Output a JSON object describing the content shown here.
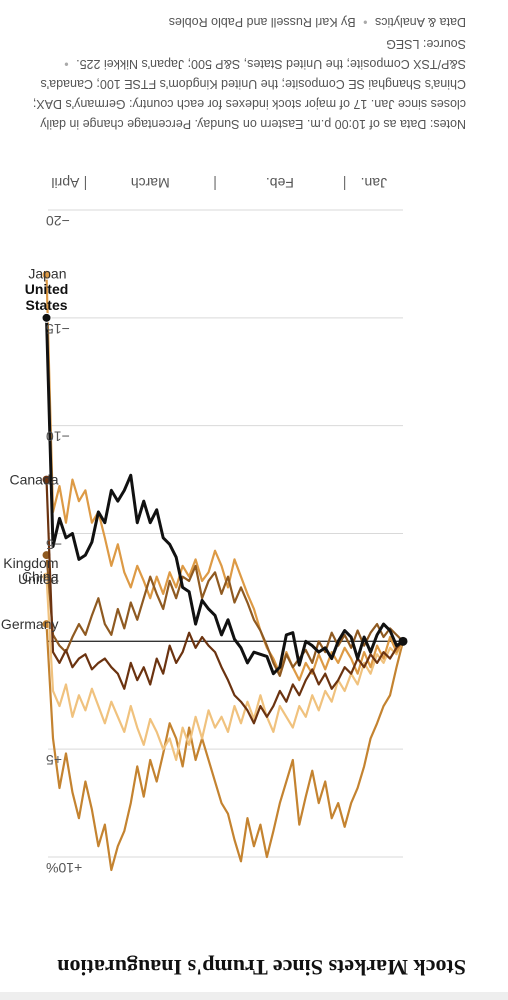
{
  "title": "Stock Markets Since Trump's Inauguration",
  "notes": "Notes: Data as of 10:00 p.m. Eastern on Sunday. Percentage change in daily closes since Jan. 17 of major stock indexes for each country: Germany's DAX; China's Shanghai SE Composite; the United Kingdom's FTSE 100; Canada's S&P/TSX Composite; the United States, S&P 500; Japan's Nikkei 225.",
  "source": "Source: LSEG",
  "credit_org": "Data & Analytics",
  "credit_byline": "By Karl Russell and Pablo Robles",
  "colors": {
    "United States": "#111111",
    "Canada": "#6b3310",
    "United Kingdom": "#8f5a21",
    "Germany": "#c48330",
    "China": "#f0c27e",
    "Japan": "#dd9a45",
    "zero_line": "#333333",
    "grid": "#d9d9d9"
  },
  "chart_data": {
    "type": "line",
    "title": "Stock Markets Since Trump's Inauguration",
    "xlabel": "",
    "ylabel": "",
    "ylim": [
      -20,
      10
    ],
    "y_ticks": [
      10,
      5,
      0,
      -5,
      -10,
      -15,
      -20
    ],
    "y_tick_labels": [
      "+10%",
      "+5",
      "",
      "−5",
      "−10",
      "−15",
      "−20"
    ],
    "x_month_labels": [
      "Jan.",
      "Feb.",
      "March",
      "April"
    ],
    "x_range_trading_days": [
      0,
      54
    ],
    "x_month_boundaries": [
      9,
      29,
      49
    ],
    "grid": true,
    "series": [
      {
        "name": "United States",
        "values": [
          0.0,
          0.2,
          -0.5,
          -0.8,
          -0.3,
          0.5,
          -0.2,
          0.8,
          -0.2,
          -0.5,
          0.0,
          0.8,
          0.3,
          0.5,
          0.2,
          0.0,
          1.1,
          -0.4,
          -0.3,
          1.2,
          1.5,
          0.7,
          0.6,
          0.5,
          1.0,
          0.3,
          -0.1,
          -1.0,
          -0.3,
          -1.2,
          -1.5,
          -1.9,
          -0.8,
          -2.3,
          -2.5,
          -3.9,
          -4.5,
          -4.8,
          -6.1,
          -5.5,
          -6.5,
          -5.5,
          -7.7,
          -7.0,
          -6.5,
          -7.0,
          -5.5,
          -6.0,
          -4.6,
          -4.0,
          -3.8,
          -5.0,
          -4.8,
          -5.7,
          -4.4,
          -15.0
        ],
        "end_label": [
          "United",
          "States"
        ]
      },
      {
        "name": "Canada",
        "values": [
          0.0,
          0.3,
          0.8,
          0.5,
          1.0,
          0.6,
          1.2,
          0.8,
          1.5,
          1.2,
          1.8,
          2.2,
          1.5,
          2.0,
          1.3,
          1.8,
          2.5,
          2.0,
          2.8,
          2.3,
          3.0,
          3.5,
          3.0,
          3.8,
          3.2,
          2.8,
          2.5,
          1.8,
          1.2,
          0.5,
          0.2,
          -0.2,
          0.3,
          -0.4,
          0.5,
          1.0,
          0.2,
          1.5,
          0.8,
          2.0,
          1.2,
          1.8,
          1.0,
          2.2,
          1.5,
          1.2,
          0.8,
          1.0,
          1.3,
          0.6,
          0.8,
          1.2,
          0.4,
          1.0,
          0.5,
          -7.5
        ],
        "end_label": [
          "Canada"
        ]
      },
      {
        "name": "United Kingdom",
        "values": [
          0.0,
          -0.3,
          -0.6,
          -0.2,
          -0.8,
          -0.4,
          0.2,
          -0.5,
          0.3,
          -0.3,
          0.2,
          -0.4,
          0.5,
          0.0,
          1.0,
          0.4,
          0.8,
          1.2,
          0.6,
          1.6,
          1.0,
          0.2,
          -0.5,
          -1.0,
          -1.8,
          -2.5,
          -1.8,
          -3.0,
          -2.2,
          -3.2,
          -2.8,
          -2.0,
          -3.5,
          -2.8,
          -3.0,
          -2.0,
          -2.8,
          -1.5,
          -2.2,
          -3.0,
          -2.0,
          -1.0,
          -1.8,
          -0.6,
          -1.5,
          -0.3,
          -0.8,
          -2.0,
          -1.2,
          -0.3,
          -0.8,
          -0.2,
          0.5,
          0.2,
          -0.3,
          -4.0
        ],
        "end_label": [
          "United",
          "Kingdom"
        ]
      },
      {
        "name": "Germany",
        "values": [
          0.0,
          1.2,
          2.5,
          3.0,
          3.8,
          4.5,
          5.8,
          6.8,
          7.5,
          8.6,
          7.5,
          8.2,
          6.5,
          7.5,
          6.0,
          7.2,
          8.5,
          5.5,
          6.5,
          7.5,
          8.8,
          10.0,
          8.5,
          9.5,
          8.2,
          10.2,
          9.2,
          8.0,
          7.5,
          6.5,
          5.5,
          4.5,
          5.5,
          4.0,
          5.8,
          4.5,
          3.8,
          5.2,
          6.5,
          5.5,
          7.2,
          5.8,
          7.5,
          8.8,
          9.5,
          10.6,
          8.5,
          9.5,
          7.8,
          6.5,
          8.2,
          7.0,
          5.2,
          6.8,
          4.5,
          -0.8
        ],
        "end_label": [
          "Germany"
        ]
      },
      {
        "name": "China",
        "values": [
          0.0,
          0.6,
          0.3,
          1.0,
          0.6,
          1.5,
          1.0,
          2.0,
          1.5,
          2.3,
          1.8,
          2.8,
          2.3,
          3.2,
          2.5,
          3.5,
          3.0,
          4.0,
          3.5,
          3.0,
          4.2,
          3.5,
          2.5,
          3.6,
          2.8,
          3.8,
          3.0,
          4.2,
          3.5,
          4.0,
          3.2,
          4.5,
          3.5,
          4.8,
          4.0,
          5.5,
          4.5,
          5.0,
          4.2,
          3.6,
          4.8,
          4.0,
          3.0,
          4.2,
          3.5,
          2.8,
          3.8,
          3.0,
          2.2,
          3.2,
          2.5,
          3.5,
          2.0,
          3.0,
          2.3,
          -3.0
        ],
        "end_label": [
          "China"
        ]
      },
      {
        "name": "Japan",
        "values": [
          0.0,
          0.5,
          -0.2,
          0.8,
          0.2,
          1.2,
          0.5,
          1.5,
          0.8,
          0.3,
          1.0,
          0.5,
          1.3,
          0.6,
          1.5,
          1.0,
          1.8,
          1.2,
          0.5,
          1.5,
          0.8,
          0.3,
          -0.5,
          -1.5,
          -2.2,
          -3.0,
          -3.8,
          -2.5,
          -3.5,
          -4.2,
          -3.2,
          -2.8,
          -3.8,
          -3.0,
          -3.5,
          -2.5,
          -3.2,
          -2.2,
          -3.0,
          -2.0,
          -2.8,
          -3.5,
          -2.5,
          -3.2,
          -4.5,
          -3.5,
          -4.8,
          -6.0,
          -5.5,
          -7.0,
          -6.5,
          -7.5,
          -5.5,
          -7.2,
          -6.0,
          -17.0
        ],
        "end_label": [
          "Japan"
        ]
      }
    ]
  }
}
